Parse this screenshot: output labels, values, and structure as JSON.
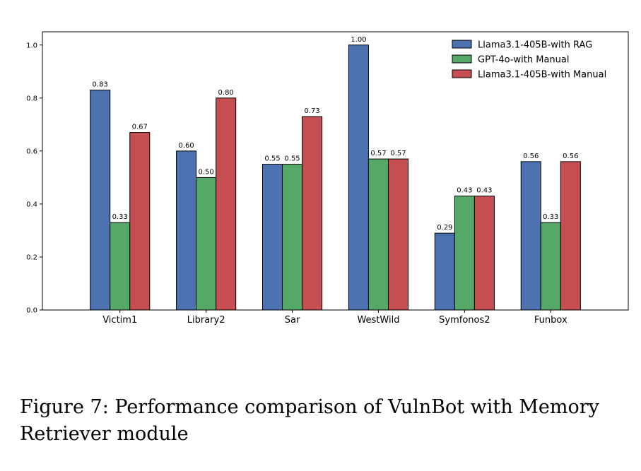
{
  "caption": "Figure 7: Performance comparison of VulnBot with Memory Retriever module",
  "chart_data": {
    "type": "bar",
    "categories": [
      "Victim1",
      "Library2",
      "Sar",
      "WestWild",
      "Symfonos2",
      "Funbox"
    ],
    "series": [
      {
        "name": "Llama3.1-405B-with RAG",
        "color": "#4c72b0",
        "values": [
          0.83,
          0.6,
          0.55,
          1.0,
          0.29,
          0.56
        ]
      },
      {
        "name": "GPT-4o-with Manual",
        "color": "#55a868",
        "values": [
          0.33,
          0.5,
          0.55,
          0.57,
          0.43,
          0.33
        ]
      },
      {
        "name": "Llama3.1-405B-with Manual",
        "color": "#c44e52",
        "values": [
          0.67,
          0.8,
          0.73,
          0.57,
          0.43,
          0.56
        ]
      }
    ],
    "value_labels": [
      [
        "0.83",
        "0.60",
        "0.55",
        "1.00",
        "0.29",
        "0.56"
      ],
      [
        "0.33",
        "0.50",
        "0.55",
        "0.57",
        "0.43",
        "0.33"
      ],
      [
        "0.67",
        "0.80",
        "0.73",
        "0.57",
        "0.43",
        "0.56"
      ]
    ],
    "title": "",
    "xlabel": "",
    "ylabel": "",
    "ylim": [
      0,
      1.05
    ],
    "yticks": [
      0.0,
      0.2,
      0.4,
      0.6,
      0.8,
      1.0
    ],
    "ytick_labels": [
      "0.0",
      "0.2",
      "0.4",
      "0.6",
      "0.8",
      "1.0"
    ],
    "grid": false,
    "legend_position": "top-right"
  }
}
